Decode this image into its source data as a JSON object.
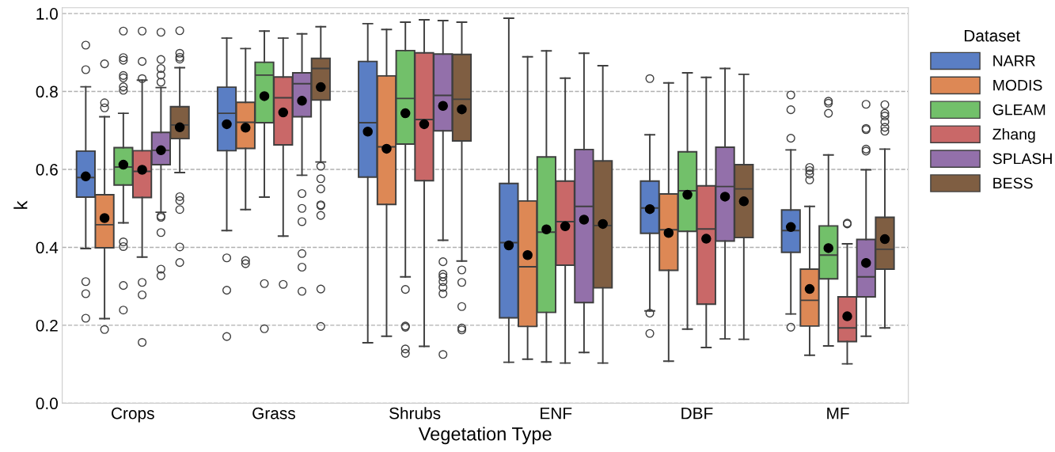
{
  "chart_data": {
    "type": "box",
    "xlabel": "Vegetation Type",
    "ylabel": "k",
    "legend_title": "Dataset",
    "legend": "top right",
    "grid": "y",
    "marker": "circle",
    "categories": [
      "Crops",
      "Grass",
      "Shrubs",
      "ENF",
      "DBF",
      "MF"
    ],
    "ylim": [
      0,
      1.015
    ],
    "yticks": [
      {
        "value": 0,
        "label": "0.0"
      },
      {
        "value": 0.2,
        "label": "0.2"
      },
      {
        "value": 0.4,
        "label": "0.4"
      },
      {
        "value": 0.6,
        "label": "0.6"
      },
      {
        "value": 0.8,
        "label": "0.8"
      },
      {
        "value": 1,
        "label": "1.0"
      }
    ],
    "series": [
      {
        "name": "NARR",
        "color": "#5a7ec4",
        "boxes": [
          {
            "low": 0.397,
            "q1": 0.529,
            "median": 0.579,
            "q3": 0.647,
            "high": 0.812,
            "mean": 0.582,
            "outliers": [
              0.919,
              0.856,
              0.312,
              0.281,
              0.218
            ]
          },
          {
            "low": 0.443,
            "q1": 0.648,
            "median": 0.744,
            "q3": 0.811,
            "high": 0.937,
            "mean": 0.716,
            "outliers": [
              0.373,
              0.29,
              0.171
            ]
          },
          {
            "low": 0.155,
            "q1": 0.58,
            "median": 0.72,
            "q3": 0.877,
            "high": 0.974,
            "mean": 0.697
          },
          {
            "low": 0.105,
            "q1": 0.219,
            "median": 0.412,
            "q3": 0.564,
            "high": 0.988,
            "mean": 0.405
          },
          {
            "low": 0.237,
            "q1": 0.436,
            "median": 0.501,
            "q3": 0.57,
            "high": 0.689,
            "mean": 0.498,
            "outliers": [
              0.833,
              0.231,
              0.179
            ]
          },
          {
            "low": 0.229,
            "q1": 0.387,
            "median": 0.443,
            "q3": 0.496,
            "high": 0.65,
            "mean": 0.452,
            "outliers": [
              0.791,
              0.753,
              0.68,
              0.195
            ]
          }
        ]
      },
      {
        "name": "MODIS",
        "color": "#dd8855",
        "boxes": [
          {
            "low": 0.217,
            "q1": 0.399,
            "median": 0.458,
            "q3": 0.535,
            "high": 0.735,
            "mean": 0.475,
            "outliers": [
              0.871,
              0.771,
              0.758,
              0.189
            ]
          },
          {
            "low": 0.497,
            "q1": 0.654,
            "median": 0.721,
            "q3": 0.772,
            "high": 0.91,
            "mean": 0.707,
            "outliers": [
              0.366,
              0.358
            ]
          },
          {
            "low": 0.172,
            "q1": 0.51,
            "median": 0.658,
            "q3": 0.84,
            "high": 0.959,
            "mean": 0.653
          },
          {
            "low": 0.113,
            "q1": 0.197,
            "median": 0.35,
            "q3": 0.519,
            "high": 0.889,
            "mean": 0.38
          },
          {
            "low": 0.108,
            "q1": 0.341,
            "median": 0.445,
            "q3": 0.537,
            "high": 0.822,
            "mean": 0.437
          },
          {
            "low": 0.123,
            "q1": 0.198,
            "median": 0.264,
            "q3": 0.344,
            "high": 0.505,
            "mean": 0.293,
            "outliers": [
              0.605,
              0.597,
              0.588,
              0.573
            ]
          }
        ]
      },
      {
        "name": "GLEAM",
        "color": "#72c06a",
        "boxes": [
          {
            "low": 0.463,
            "q1": 0.56,
            "median": 0.606,
            "q3": 0.656,
            "high": 0.744,
            "mean": 0.612,
            "outliers": [
              0.955,
              0.887,
              0.88,
              0.841,
              0.835,
              0.812,
              0.803,
              0.414,
              0.402,
              0.302,
              0.239
            ]
          },
          {
            "low": 0.529,
            "q1": 0.72,
            "median": 0.842,
            "q3": 0.875,
            "high": 0.955,
            "mean": 0.788,
            "outliers": [
              0.307,
              0.191
            ]
          },
          {
            "low": 0.324,
            "q1": 0.665,
            "median": 0.782,
            "q3": 0.905,
            "high": 0.978,
            "mean": 0.744,
            "outliers": [
              0.292,
              0.198,
              0.195,
              0.139,
              0.128
            ]
          },
          {
            "low": 0.106,
            "q1": 0.233,
            "median": 0.439,
            "q3": 0.632,
            "high": 0.904,
            "mean": 0.446
          },
          {
            "low": 0.19,
            "q1": 0.441,
            "median": 0.545,
            "q3": 0.645,
            "high": 0.848,
            "mean": 0.535
          },
          {
            "low": 0.147,
            "q1": 0.319,
            "median": 0.38,
            "q3": 0.455,
            "high": 0.637,
            "mean": 0.398,
            "outliers": [
              0.775,
              0.77,
              0.744
            ]
          }
        ]
      },
      {
        "name": "Zhang",
        "color": "#c96868",
        "boxes": [
          {
            "low": 0.375,
            "q1": 0.528,
            "median": 0.595,
            "q3": 0.648,
            "high": 0.829,
            "mean": 0.599,
            "outliers": [
              0.955,
              0.877,
              0.833,
              0.31,
              0.278,
              0.156
            ]
          },
          {
            "low": 0.429,
            "q1": 0.663,
            "median": 0.784,
            "q3": 0.837,
            "high": 0.937,
            "mean": 0.746,
            "outliers": [
              0.305
            ]
          },
          {
            "low": 0.146,
            "q1": 0.571,
            "median": 0.728,
            "q3": 0.899,
            "high": 0.984,
            "mean": 0.716
          },
          {
            "low": 0.103,
            "q1": 0.354,
            "median": 0.466,
            "q3": 0.57,
            "high": 0.834,
            "mean": 0.454
          },
          {
            "low": 0.143,
            "q1": 0.254,
            "median": 0.447,
            "q3": 0.558,
            "high": 0.836,
            "mean": 0.422
          },
          {
            "low": 0.101,
            "q1": 0.158,
            "median": 0.193,
            "q3": 0.273,
            "high": 0.409,
            "mean": 0.223,
            "outliers": [
              0.462,
              0.46
            ]
          }
        ]
      },
      {
        "name": "SPLASH",
        "color": "#9370aa",
        "boxes": [
          {
            "low": 0.49,
            "q1": 0.612,
            "median": 0.649,
            "q3": 0.695,
            "high": 0.81,
            "mean": 0.649,
            "outliers": [
              0.952,
              0.882,
              0.859,
              0.842,
              0.824,
              0.48,
              0.477,
              0.438,
              0.344,
              0.327
            ]
          },
          {
            "low": 0.585,
            "q1": 0.735,
            "median": 0.82,
            "q3": 0.848,
            "high": 0.948,
            "mean": 0.776,
            "outliers": [
              0.538,
              0.5,
              0.466,
              0.384,
              0.349,
              0.287
            ]
          },
          {
            "low": 0.418,
            "q1": 0.699,
            "median": 0.79,
            "q3": 0.896,
            "high": 0.982,
            "mean": 0.763,
            "outliers": [
              0.363,
              0.331,
              0.324,
              0.312,
              0.297,
              0.281,
              0.125
            ]
          },
          {
            "low": 0.13,
            "q1": 0.258,
            "median": 0.505,
            "q3": 0.651,
            "high": 0.898,
            "mean": 0.471
          },
          {
            "low": 0.165,
            "q1": 0.416,
            "median": 0.556,
            "q3": 0.657,
            "high": 0.859,
            "mean": 0.53
          },
          {
            "low": 0.172,
            "q1": 0.273,
            "median": 0.324,
            "q3": 0.42,
            "high": 0.599,
            "mean": 0.36,
            "outliers": [
              0.767,
              0.705,
              0.702,
              0.652,
              0.647
            ]
          }
        ]
      },
      {
        "name": "BESS",
        "color": "#7f5e42",
        "boxes": [
          {
            "low": 0.592,
            "q1": 0.679,
            "median": 0.714,
            "q3": 0.761,
            "high": 0.861,
            "mean": 0.708,
            "outliers": [
              0.956,
              0.898,
              0.888,
              0.883,
              0.53,
              0.52,
              0.497,
              0.401,
              0.361
            ]
          },
          {
            "low": 0.619,
            "q1": 0.778,
            "median": 0.859,
            "q3": 0.885,
            "high": 0.966,
            "mean": 0.811,
            "outliers": [
              0.608,
              0.576,
              0.55,
              0.509,
              0.507,
              0.482,
              0.293,
              0.197
            ]
          },
          {
            "low": 0.365,
            "q1": 0.673,
            "median": 0.78,
            "q3": 0.895,
            "high": 0.978,
            "mean": 0.754,
            "outliers": [
              0.342,
              0.31,
              0.248,
              0.193,
              0.188
            ]
          },
          {
            "low": 0.103,
            "q1": 0.296,
            "median": 0.456,
            "q3": 0.622,
            "high": 0.866,
            "mean": 0.46
          },
          {
            "low": 0.164,
            "q1": 0.425,
            "median": 0.55,
            "q3": 0.612,
            "high": 0.844,
            "mean": 0.518
          },
          {
            "low": 0.193,
            "q1": 0.344,
            "median": 0.395,
            "q3": 0.477,
            "high": 0.652,
            "mean": 0.421,
            "outliers": [
              0.766,
              0.744,
              0.737,
              0.722,
              0.708,
              0.698
            ]
          }
        ]
      }
    ]
  }
}
